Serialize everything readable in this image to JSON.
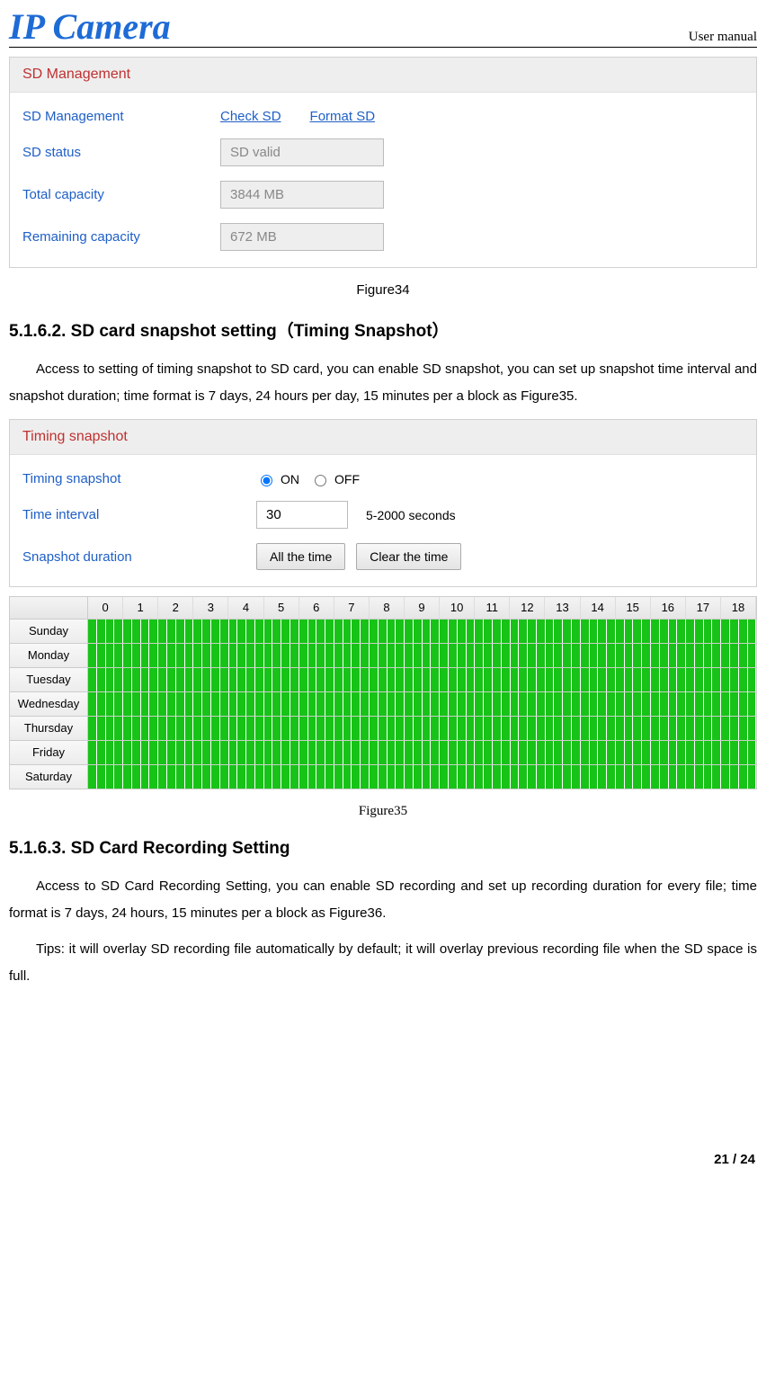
{
  "header": {
    "logo_text": "IP Camera",
    "manual": "User manual"
  },
  "panel1": {
    "title": "SD Management",
    "rows": {
      "mgmt_label": "SD Management",
      "check_link": "Check SD",
      "format_link": "Format SD",
      "status_label": "SD status",
      "status_value": "SD valid",
      "total_label": "Total capacity",
      "total_value": "3844 MB",
      "remain_label": "Remaining capacity",
      "remain_value": "672 MB"
    }
  },
  "caption1": "Figure34",
  "section1": {
    "heading": "5.1.6.2. SD card snapshot setting（Timing Snapshot）",
    "para": "Access to setting of timing snapshot to SD card, you can enable SD snapshot, you can set up snapshot time interval and snapshot duration; time format is 7 days, 24 hours per day, 15 minutes per a block as Figure35."
  },
  "panel2": {
    "title": "Timing snapshot",
    "timing_label": "Timing snapshot",
    "on": "ON",
    "off": "OFF",
    "interval_label": "Time interval",
    "interval_value": "30",
    "interval_hint": "5-2000 seconds",
    "duration_label": "Snapshot duration",
    "btn_all": "All the time",
    "btn_clear": "Clear the time"
  },
  "schedule": {
    "hours": [
      "0",
      "1",
      "2",
      "3",
      "4",
      "5",
      "6",
      "7",
      "8",
      "9",
      "10",
      "11",
      "12",
      "13",
      "14",
      "15",
      "16",
      "17",
      "18"
    ],
    "days": [
      "Sunday",
      "Monday",
      "Tuesday",
      "Wednesday",
      "Thursday",
      "Friday",
      "Saturday"
    ],
    "cells_per_row": 76,
    "cell_color": "#17c317"
  },
  "caption2": "Figure35",
  "section2": {
    "heading": "5.1.6.3. SD Card Recording Setting",
    "para1": "Access to SD Card Recording Setting, you can enable SD recording and set up recording duration for every file; time format is 7 days, 24 hours, 15 minutes per a block as Figure36.",
    "para2": "Tips: it will overlay SD recording file automatically by default; it will overlay previous recording file when the SD space is full."
  },
  "footer": "21 / 24"
}
